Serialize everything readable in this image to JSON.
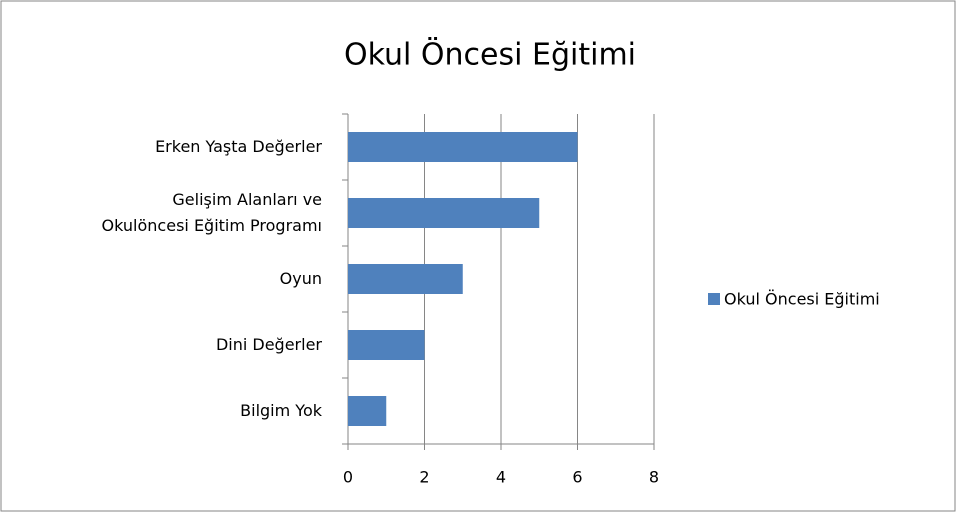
{
  "chart_data": {
    "type": "bar",
    "orientation": "horizontal",
    "title": "Okul Öncesi Eğitimi",
    "categories": [
      "Erken Yaşta Değerler",
      "Gelişim Alanları ve\nOkulöncesi Eğitim Programı",
      "Oyun",
      "Dini Değerler",
      "Bilgim Yok"
    ],
    "series": [
      {
        "name": "Okul Öncesi Eğitimi",
        "color": "#4f81bd",
        "values": [
          6,
          5,
          3,
          2,
          1
        ]
      }
    ],
    "xlim": [
      0,
      8
    ],
    "xticks": [
      0,
      2,
      4,
      6,
      8
    ],
    "grid": true,
    "legend": "right"
  }
}
